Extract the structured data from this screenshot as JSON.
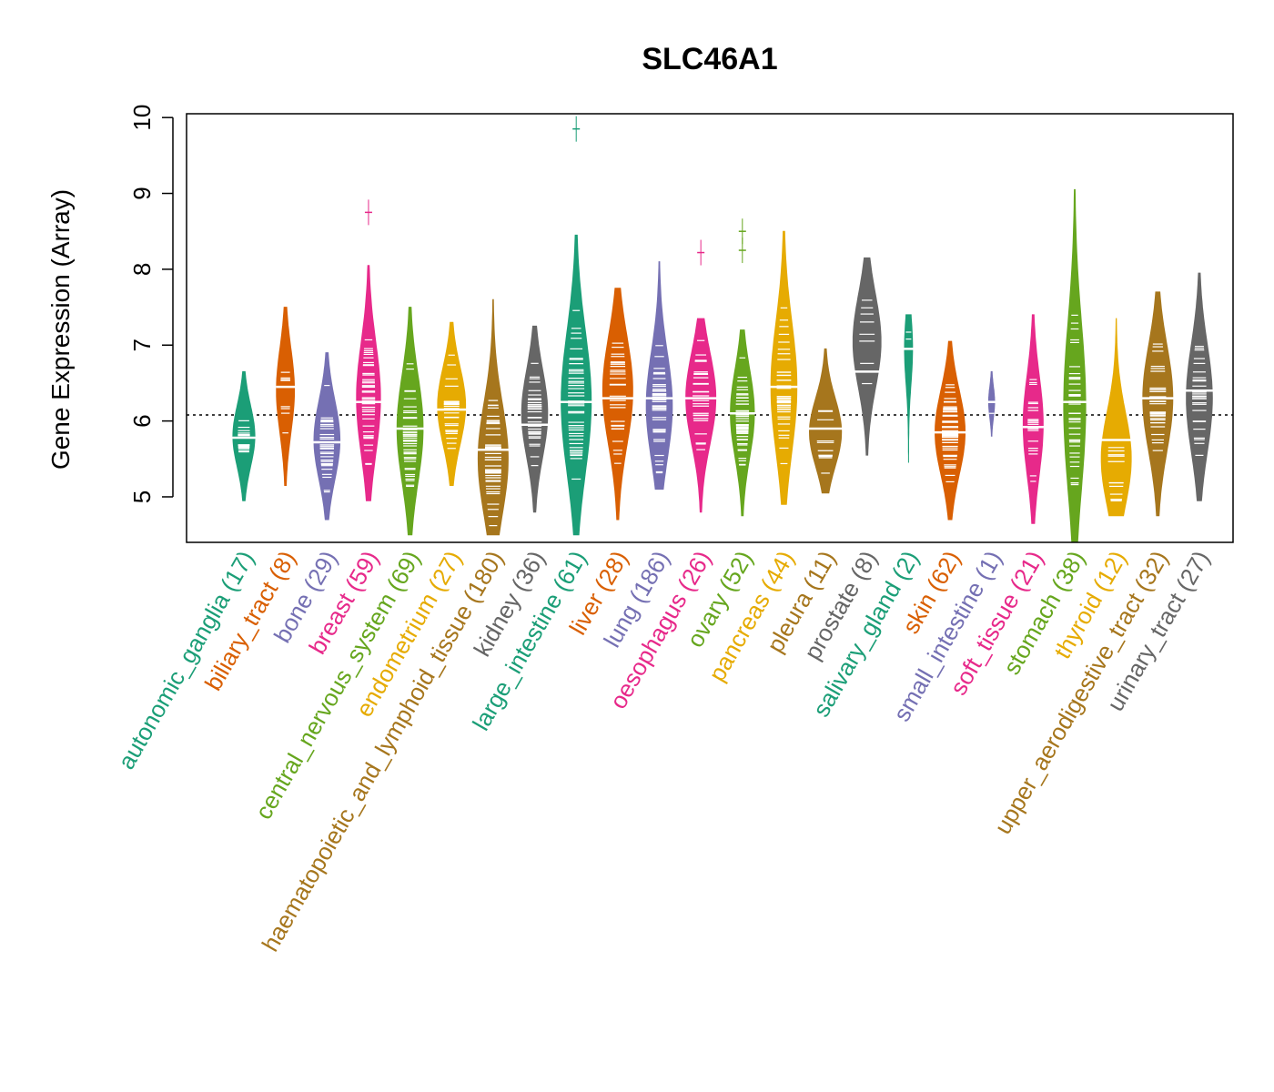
{
  "chart_data": {
    "type": "beanplot",
    "title": "SLC46A1",
    "ylabel": "Gene Expression (Array)",
    "ylim": [
      4.4,
      10.05
    ],
    "yticks": [
      5,
      6,
      7,
      8,
      9,
      10
    ],
    "reference_line": 6.08,
    "categories": [
      {
        "name": "autonomic_ganglia",
        "n": 17,
        "label": "autonomic_ganglia (17)",
        "color": "#1B9E77",
        "min": 4.95,
        "max": 6.65,
        "mode": 5.8,
        "median": 5.78,
        "width": 0.55
      },
      {
        "name": "biliary_tract",
        "n": 8,
        "label": "biliary_tract (8)",
        "color": "#D95F02",
        "min": 5.15,
        "max": 7.5,
        "mode": 6.4,
        "median": 6.45,
        "width": 0.45
      },
      {
        "name": "bone",
        "n": 29,
        "label": "bone (29)",
        "color": "#7570B3",
        "min": 4.7,
        "max": 6.9,
        "mode": 5.75,
        "median": 5.72,
        "width": 0.65
      },
      {
        "name": "breast",
        "n": 59,
        "label": "breast (59)",
        "color": "#E7298A",
        "min": 4.95,
        "max": 8.05,
        "mode": 6.3,
        "median": 6.25,
        "width": 0.6,
        "outliers": [
          8.75
        ]
      },
      {
        "name": "central_nervous_system",
        "n": 69,
        "label": "central_nervous_system (69)",
        "color": "#66A61E",
        "min": 4.5,
        "max": 7.5,
        "mode": 5.9,
        "median": 5.9,
        "width": 0.65
      },
      {
        "name": "endometrium",
        "n": 27,
        "label": "endometrium (27)",
        "color": "#E6AB02",
        "min": 5.15,
        "max": 7.3,
        "mode": 6.2,
        "median": 6.15,
        "width": 0.7
      },
      {
        "name": "haematopoietic_and_lymphoid_tissue",
        "n": 180,
        "label": "haematopoietic_and_lymphoid_tissue (180)",
        "color": "#A6761D",
        "min": 4.5,
        "max": 7.6,
        "mode": 5.5,
        "median": 5.62,
        "width": 0.75
      },
      {
        "name": "kidney",
        "n": 36,
        "label": "kidney (36)",
        "color": "#666666",
        "min": 4.8,
        "max": 7.25,
        "mode": 6.1,
        "median": 5.95,
        "width": 0.65
      },
      {
        "name": "large_intestine",
        "n": 61,
        "label": "large_intestine (61)",
        "color": "#1B9E77",
        "min": 4.5,
        "max": 8.45,
        "mode": 6.25,
        "median": 6.25,
        "width": 0.75,
        "outliers": [
          9.85
        ]
      },
      {
        "name": "liver",
        "n": 28,
        "label": "liver (28)",
        "color": "#D95F02",
        "min": 4.7,
        "max": 7.75,
        "mode": 6.4,
        "median": 6.3,
        "width": 0.75
      },
      {
        "name": "lung",
        "n": 186,
        "label": "lung (186)",
        "color": "#7570B3",
        "min": 5.1,
        "max": 8.1,
        "mode": 6.2,
        "median": 6.3,
        "width": 0.65
      },
      {
        "name": "oesophagus",
        "n": 26,
        "label": "oesophagus (26)",
        "color": "#E7298A",
        "min": 4.8,
        "max": 7.35,
        "mode": 6.3,
        "median": 6.3,
        "width": 0.75,
        "outliers": [
          8.22
        ]
      },
      {
        "name": "ovary",
        "n": 52,
        "label": "ovary (52)",
        "color": "#66A61E",
        "min": 4.75,
        "max": 7.2,
        "mode": 6.1,
        "median": 6.1,
        "width": 0.6,
        "outliers": [
          8.25,
          8.5
        ]
      },
      {
        "name": "pancreas",
        "n": 44,
        "label": "pancreas (44)",
        "color": "#E6AB02",
        "min": 4.9,
        "max": 8.5,
        "mode": 6.45,
        "median": 6.45,
        "width": 0.65
      },
      {
        "name": "pleura",
        "n": 11,
        "label": "pleura (11)",
        "color": "#A6761D",
        "min": 5.05,
        "max": 6.95,
        "mode": 5.85,
        "median": 5.9,
        "width": 0.8
      },
      {
        "name": "prostate",
        "n": 8,
        "label": "prostate (8)",
        "color": "#666666",
        "min": 5.55,
        "max": 8.15,
        "mode": 7.05,
        "median": 6.65,
        "width": 0.7
      },
      {
        "name": "salivary_gland",
        "n": 2,
        "label": "salivary_gland (2)",
        "color": "#1B9E77",
        "min": 5.45,
        "max": 7.4,
        "mode": 6.95,
        "median": 6.95,
        "width": 0.2
      },
      {
        "name": "skin",
        "n": 62,
        "label": "skin (62)",
        "color": "#D95F02",
        "min": 4.7,
        "max": 7.05,
        "mode": 5.85,
        "median": 5.85,
        "width": 0.75
      },
      {
        "name": "small_intestine",
        "n": 1,
        "label": "small_intestine (1)",
        "color": "#7570B3",
        "min": 5.8,
        "max": 6.65,
        "mode": 6.25,
        "median": 6.25,
        "width": 0.15
      },
      {
        "name": "soft_tissue",
        "n": 21,
        "label": "soft_tissue (21)",
        "color": "#E7298A",
        "min": 4.65,
        "max": 7.4,
        "mode": 5.95,
        "median": 5.92,
        "width": 0.5
      },
      {
        "name": "stomach",
        "n": 38,
        "label": "stomach (38)",
        "color": "#66A61E",
        "min": 4.4,
        "max": 9.05,
        "mode": 6.2,
        "median": 6.25,
        "width": 0.55
      },
      {
        "name": "thyroid",
        "n": 12,
        "label": "thyroid (12)",
        "color": "#E6AB02",
        "min": 4.75,
        "max": 7.35,
        "mode": 5.5,
        "median": 5.75,
        "width": 0.75
      },
      {
        "name": "upper_aerodigestive_tract",
        "n": 32,
        "label": "upper_aerodigestive_tract (32)",
        "color": "#A6761D",
        "min": 4.75,
        "max": 7.7,
        "mode": 6.3,
        "median": 6.3,
        "width": 0.75
      },
      {
        "name": "urinary_tract",
        "n": 27,
        "label": "urinary_tract (27)",
        "color": "#666666",
        "min": 4.95,
        "max": 7.95,
        "mode": 6.3,
        "median": 6.4,
        "width": 0.65
      }
    ]
  }
}
